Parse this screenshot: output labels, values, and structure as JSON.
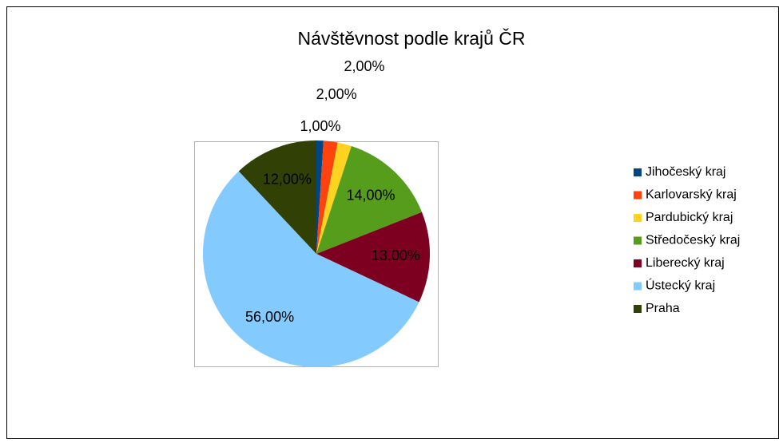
{
  "chart_data": {
    "type": "pie",
    "title": "Návštěvnost podle krajů ČR",
    "categories": [
      "Jihočeský kraj",
      "Karlovarský kraj",
      "Pardubický kraj",
      "Středočeský kraj",
      "Liberecký kraj",
      "Ústecký kraj",
      "Praha"
    ],
    "values": [
      1,
      2,
      2,
      14,
      13,
      56,
      12
    ],
    "value_labels": [
      "1,00%",
      "2,00%",
      "2,00%",
      "14,00%",
      "13,00%",
      "56,00%",
      "12,00%"
    ],
    "colors": [
      "#004586",
      "#ff420e",
      "#ffd320",
      "#579d1c",
      "#7e0021",
      "#83caff",
      "#314004"
    ],
    "legend": "right"
  }
}
